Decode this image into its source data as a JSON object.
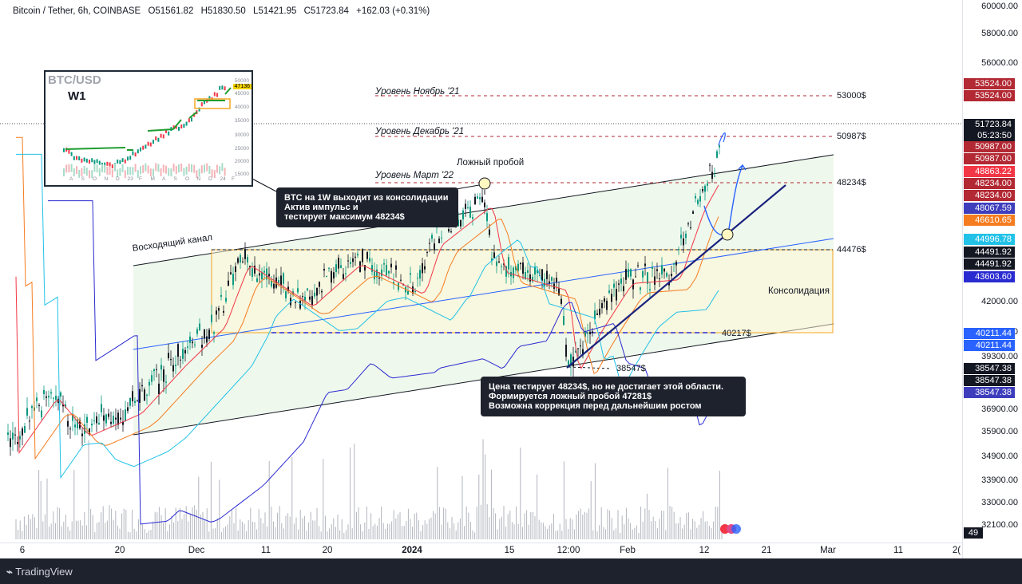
{
  "header": {
    "symbol": "Bitcoin / Tether, 6h, COINBASE",
    "open": "O51561.82",
    "high": "H51830.50",
    "low": "L51421.95",
    "close": "C51723.84",
    "change": "+162.03 (+0.31%)"
  },
  "footer": {
    "brand": "TradingView"
  },
  "y_axis_ticks": [
    "60000.00",
    "58000.00",
    "56000.00",
    "42000.00",
    "40500.00",
    "39300.00",
    "36900.00",
    "35900.00",
    "34900.00",
    "33900.00",
    "33000.00",
    "32100.00"
  ],
  "x_axis_ticks": [
    "6",
    "20",
    "Dec",
    "11",
    "20",
    "2024",
    "15",
    "12:00",
    "Feb",
    "12",
    "21",
    "Mar",
    "11",
    "2("
  ],
  "price_tags": [
    {
      "text": "53524.00",
      "color": "#b22833"
    },
    {
      "text": "53524.00",
      "color": "#b22833"
    },
    {
      "text": "51723.84",
      "color": "#131722"
    },
    {
      "text": "05:23:50",
      "color": "#131722"
    },
    {
      "text": "50987.00",
      "color": "#b22833"
    },
    {
      "text": "50987.00",
      "color": "#b22833"
    },
    {
      "text": "48863.22",
      "color": "#f23645"
    },
    {
      "text": "48234.00",
      "color": "#b22833"
    },
    {
      "text": "48234.00",
      "color": "#b22833"
    },
    {
      "text": "48067.59",
      "color": "#3e3ebd"
    },
    {
      "text": "46610.65",
      "color": "#f57c1f"
    },
    {
      "text": "44996.78",
      "color": "#22c2e8"
    },
    {
      "text": "44491.92",
      "color": "#131722"
    },
    {
      "text": "44491.92",
      "color": "#131722"
    },
    {
      "text": "43603.60",
      "color": "#2a2ad1"
    },
    {
      "text": "40211.44",
      "color": "#2962ff"
    },
    {
      "text": "40211.44",
      "color": "#2962ff"
    },
    {
      "text": "38547.38",
      "color": "#131722"
    },
    {
      "text": "38547.38",
      "color": "#131722"
    },
    {
      "text": "38547.38",
      "color": "#3e3ebd"
    }
  ],
  "volume_tag": "49",
  "levels": {
    "nov21": {
      "label": "Уровень Ноябрь '21",
      "price": "53000$"
    },
    "dec21": {
      "label": "Уровень Декабрь '21",
      "price": "50987$"
    },
    "mar22": {
      "label": "Уровень Март '22",
      "price": "48234$"
    },
    "cons_top": "44476$",
    "cons_bottom": "40217$",
    "low": "38547$"
  },
  "annotations": {
    "false_breakout": "Ложный пробой",
    "channel": "Восходящий канал",
    "consolidation": "Консолидация",
    "callout1": [
      "BTC на 1W выходит из консолидации",
      "Актив импульс и",
      "тестирует максимум 48234$"
    ],
    "callout2": [
      "Цена тестирует 48234$, но не достигает этой области.",
      "Формируется ложный пробой 47281$",
      "Возможна коррекция перед дальнейшим ростом"
    ]
  },
  "inset": {
    "title": "BTC/USD",
    "timeframe": "W1",
    "last_price": "47136",
    "y_ticks": [
      "50000",
      "45000",
      "40000",
      "35000",
      "30000",
      "25000",
      "20000",
      "15000"
    ],
    "x_ticks": [
      "A",
      "S",
      "O",
      "N",
      "D",
      "23",
      "F",
      "M",
      "A",
      "S",
      "O",
      "N",
      "D",
      "24",
      "F"
    ]
  },
  "chart_data": {
    "type": "line",
    "title": "",
    "xlabel": "",
    "ylabel": "",
    "ylim": [
      32000,
      60000
    ],
    "x": [
      "6",
      "20",
      "Dec",
      "11",
      "20",
      "2024",
      "15",
      "12:00",
      "Feb",
      "12"
    ],
    "series": [
      {
        "values": [
          35000,
          37500,
          44000,
          43200,
          42600,
          44800,
          42500,
          38600,
          42600,
          51724
        ]
      }
    ],
    "colors": {
      "up": "#089981",
      "down": "#131722",
      "ma_red": "#f23645",
      "ma_orange": "#f57c1f",
      "ma_cyan": "#22c2e8",
      "ma_blue": "#2a2ad1",
      "level": "#b22833",
      "consolidation": "#f5a623"
    }
  }
}
